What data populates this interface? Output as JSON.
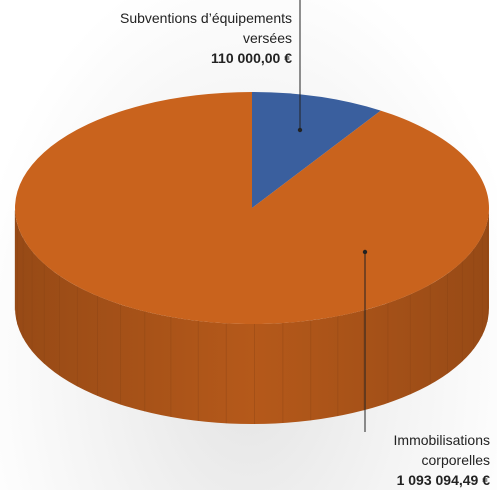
{
  "chart_data": {
    "type": "pie",
    "series": [
      {
        "name": "Subventions d’équipements versées",
        "color": "#3a5f9e",
        "values": [
          110000.0
        ],
        "value_labels": [
          "110 000,00 €"
        ]
      },
      {
        "name": "Immobilisations corporelles",
        "color": "#c9631d",
        "values": [
          1093094.49
        ],
        "value_labels": [
          "1 093 094,49 €"
        ]
      }
    ]
  }
}
